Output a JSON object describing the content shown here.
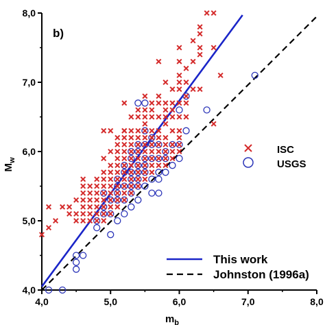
{
  "chart_data": {
    "type": "scatter",
    "panel_label": "b)",
    "xlabel_main": "m",
    "xlabel_sub": "b",
    "ylabel_main": "M",
    "ylabel_sub": "w",
    "xlim": [
      4.0,
      8.0
    ],
    "ylim": [
      4.0,
      8.0
    ],
    "x_ticks": [
      4.0,
      5.0,
      6.0,
      7.0,
      8.0
    ],
    "y_ticks": [
      4.0,
      5.0,
      6.0,
      7.0,
      8.0
    ],
    "x_tick_labels": [
      "4,0",
      "5,0",
      "6,0",
      "7,0",
      "8,0"
    ],
    "y_tick_labels": [
      "4,0",
      "5,0",
      "6,0",
      "7,0",
      "8,0"
    ],
    "grid": false,
    "legend_placement": "right",
    "colors": {
      "isc": "#d42a2a",
      "usgs": "#2a34b8",
      "this_work": "#1a25c8",
      "johnston": "#000000"
    },
    "series": [
      {
        "name": "ISC",
        "marker": "x",
        "points": [
          [
            4.0,
            4.8
          ],
          [
            4.1,
            4.9
          ],
          [
            4.1,
            5.2
          ],
          [
            4.2,
            5.0
          ],
          [
            4.3,
            5.2
          ],
          [
            4.4,
            5.2
          ],
          [
            4.4,
            5.1
          ],
          [
            4.5,
            5.0
          ],
          [
            4.5,
            5.1
          ],
          [
            4.5,
            5.3
          ],
          [
            4.6,
            5.0
          ],
          [
            4.6,
            5.1
          ],
          [
            4.6,
            5.2
          ],
          [
            4.6,
            5.3
          ],
          [
            4.6,
            5.4
          ],
          [
            4.6,
            5.5
          ],
          [
            4.6,
            5.6
          ],
          [
            4.7,
            5.0
          ],
          [
            4.7,
            5.1
          ],
          [
            4.7,
            5.2
          ],
          [
            4.7,
            5.3
          ],
          [
            4.7,
            5.4
          ],
          [
            4.7,
            5.5
          ],
          [
            4.8,
            5.0
          ],
          [
            4.8,
            5.1
          ],
          [
            4.8,
            5.2
          ],
          [
            4.8,
            5.3
          ],
          [
            4.8,
            5.4
          ],
          [
            4.8,
            5.5
          ],
          [
            4.8,
            5.6
          ],
          [
            4.9,
            5.0
          ],
          [
            4.9,
            5.1
          ],
          [
            4.9,
            5.2
          ],
          [
            4.9,
            5.3
          ],
          [
            4.9,
            5.4
          ],
          [
            4.9,
            5.5
          ],
          [
            4.9,
            5.6
          ],
          [
            4.9,
            5.7
          ],
          [
            4.9,
            5.9
          ],
          [
            5.0,
            5.1
          ],
          [
            5.0,
            5.2
          ],
          [
            5.0,
            5.3
          ],
          [
            5.0,
            5.4
          ],
          [
            5.0,
            5.5
          ],
          [
            5.0,
            5.6
          ],
          [
            5.0,
            5.7
          ],
          [
            5.0,
            5.8
          ],
          [
            5.0,
            6.0
          ],
          [
            5.0,
            6.3
          ],
          [
            5.1,
            5.2
          ],
          [
            5.1,
            5.3
          ],
          [
            5.1,
            5.4
          ],
          [
            5.1,
            5.5
          ],
          [
            5.1,
            5.6
          ],
          [
            5.1,
            5.7
          ],
          [
            5.1,
            5.8
          ],
          [
            5.1,
            5.9
          ],
          [
            5.1,
            6.0
          ],
          [
            5.1,
            6.1
          ],
          [
            5.1,
            6.2
          ],
          [
            5.2,
            5.3
          ],
          [
            5.2,
            5.4
          ],
          [
            5.2,
            5.5
          ],
          [
            5.2,
            5.6
          ],
          [
            5.2,
            5.7
          ],
          [
            5.2,
            5.8
          ],
          [
            5.2,
            5.9
          ],
          [
            5.2,
            6.0
          ],
          [
            5.2,
            6.1
          ],
          [
            5.2,
            6.2
          ],
          [
            5.2,
            6.3
          ],
          [
            5.2,
            6.7
          ],
          [
            5.3,
            5.4
          ],
          [
            5.3,
            5.5
          ],
          [
            5.3,
            5.6
          ],
          [
            5.3,
            5.7
          ],
          [
            5.3,
            5.8
          ],
          [
            5.3,
            5.9
          ],
          [
            5.3,
            6.0
          ],
          [
            5.3,
            6.1
          ],
          [
            5.3,
            6.2
          ],
          [
            5.3,
            6.3
          ],
          [
            5.3,
            6.5
          ],
          [
            5.4,
            5.5
          ],
          [
            5.4,
            5.6
          ],
          [
            5.4,
            5.7
          ],
          [
            5.4,
            5.8
          ],
          [
            5.4,
            5.9
          ],
          [
            5.4,
            6.0
          ],
          [
            5.4,
            6.1
          ],
          [
            5.4,
            6.2
          ],
          [
            5.4,
            6.3
          ],
          [
            5.4,
            6.5
          ],
          [
            5.4,
            6.6
          ],
          [
            5.5,
            5.6
          ],
          [
            5.5,
            5.7
          ],
          [
            5.5,
            5.8
          ],
          [
            5.5,
            5.9
          ],
          [
            5.5,
            6.0
          ],
          [
            5.5,
            6.1
          ],
          [
            5.5,
            6.2
          ],
          [
            5.5,
            6.3
          ],
          [
            5.5,
            6.4
          ],
          [
            5.5,
            6.5
          ],
          [
            5.5,
            6.6
          ],
          [
            5.5,
            6.8
          ],
          [
            5.6,
            5.7
          ],
          [
            5.6,
            5.8
          ],
          [
            5.6,
            5.9
          ],
          [
            5.6,
            6.0
          ],
          [
            5.6,
            6.1
          ],
          [
            5.6,
            6.2
          ],
          [
            5.6,
            6.3
          ],
          [
            5.6,
            6.5
          ],
          [
            5.6,
            6.6
          ],
          [
            5.6,
            6.7
          ],
          [
            5.7,
            5.8
          ],
          [
            5.7,
            5.9
          ],
          [
            5.7,
            6.0
          ],
          [
            5.7,
            6.1
          ],
          [
            5.7,
            6.2
          ],
          [
            5.7,
            6.3
          ],
          [
            5.7,
            6.5
          ],
          [
            5.7,
            6.7
          ],
          [
            5.7,
            6.8
          ],
          [
            5.8,
            5.8
          ],
          [
            5.8,
            5.9
          ],
          [
            5.8,
            6.0
          ],
          [
            5.8,
            6.1
          ],
          [
            5.8,
            6.2
          ],
          [
            5.8,
            6.4
          ],
          [
            5.8,
            6.5
          ],
          [
            5.8,
            6.6
          ],
          [
            5.8,
            6.7
          ],
          [
            5.8,
            7.0
          ],
          [
            5.9,
            5.9
          ],
          [
            5.9,
            6.0
          ],
          [
            5.9,
            6.1
          ],
          [
            5.9,
            6.3
          ],
          [
            5.9,
            6.5
          ],
          [
            5.9,
            6.6
          ],
          [
            5.9,
            6.7
          ],
          [
            5.9,
            6.9
          ],
          [
            6.0,
            6.0
          ],
          [
            6.0,
            6.1
          ],
          [
            6.0,
            6.2
          ],
          [
            6.0,
            6.3
          ],
          [
            6.0,
            6.5
          ],
          [
            6.0,
            6.7
          ],
          [
            6.0,
            6.9
          ],
          [
            6.0,
            7.0
          ],
          [
            6.0,
            7.1
          ],
          [
            6.0,
            7.3
          ],
          [
            6.0,
            7.5
          ],
          [
            6.1,
            6.5
          ],
          [
            6.1,
            6.7
          ],
          [
            6.1,
            6.8
          ],
          [
            6.1,
            7.0
          ],
          [
            6.1,
            7.2
          ],
          [
            6.2,
            6.9
          ],
          [
            6.2,
            7.3
          ],
          [
            6.2,
            7.6
          ],
          [
            6.3,
            6.9
          ],
          [
            6.3,
            7.7
          ],
          [
            6.3,
            7.8
          ],
          [
            6.3,
            7.5
          ],
          [
            6.3,
            7.4
          ],
          [
            6.4,
            8.0
          ],
          [
            6.5,
            8.0
          ],
          [
            6.5,
            7.5
          ],
          [
            6.5,
            6.4
          ],
          [
            5.7,
            7.3
          ],
          [
            6.6,
            7.1
          ],
          [
            5.2,
            6.3
          ],
          [
            4.9,
            6.3
          ]
        ]
      },
      {
        "name": "USGS",
        "marker": "o",
        "points": [
          [
            4.1,
            4.0
          ],
          [
            4.3,
            4.0
          ],
          [
            4.5,
            4.3
          ],
          [
            4.5,
            4.4
          ],
          [
            4.5,
            4.5
          ],
          [
            4.6,
            4.5
          ],
          [
            4.8,
            4.9
          ],
          [
            4.8,
            5.0
          ],
          [
            4.9,
            5.1
          ],
          [
            4.9,
            5.2
          ],
          [
            4.9,
            5.4
          ],
          [
            5.0,
            4.8
          ],
          [
            5.0,
            5.1
          ],
          [
            5.0,
            5.3
          ],
          [
            5.1,
            5.0
          ],
          [
            5.1,
            5.3
          ],
          [
            5.1,
            5.4
          ],
          [
            5.1,
            5.5
          ],
          [
            5.1,
            5.6
          ],
          [
            5.2,
            5.1
          ],
          [
            5.2,
            5.3
          ],
          [
            5.2,
            5.5
          ],
          [
            5.2,
            5.7
          ],
          [
            5.2,
            5.8
          ],
          [
            5.3,
            5.2
          ],
          [
            5.3,
            5.4
          ],
          [
            5.3,
            5.5
          ],
          [
            5.3,
            5.6
          ],
          [
            5.3,
            5.7
          ],
          [
            5.3,
            5.9
          ],
          [
            5.3,
            6.0
          ],
          [
            5.4,
            5.3
          ],
          [
            5.4,
            5.5
          ],
          [
            5.4,
            5.6
          ],
          [
            5.4,
            5.7
          ],
          [
            5.4,
            5.8
          ],
          [
            5.4,
            6.0
          ],
          [
            5.4,
            6.1
          ],
          [
            5.5,
            5.5
          ],
          [
            5.5,
            5.7
          ],
          [
            5.5,
            5.8
          ],
          [
            5.5,
            5.9
          ],
          [
            5.5,
            6.1
          ],
          [
            5.5,
            6.3
          ],
          [
            5.5,
            6.7
          ],
          [
            5.6,
            5.4
          ],
          [
            5.6,
            5.6
          ],
          [
            5.6,
            5.9
          ],
          [
            5.6,
            6.1
          ],
          [
            5.6,
            6.2
          ],
          [
            5.7,
            5.4
          ],
          [
            5.7,
            5.6
          ],
          [
            5.7,
            5.7
          ],
          [
            5.7,
            5.9
          ],
          [
            5.7,
            6.1
          ],
          [
            5.8,
            6.0
          ],
          [
            5.8,
            5.7
          ],
          [
            5.8,
            5.9
          ],
          [
            5.9,
            6.1
          ],
          [
            5.9,
            5.8
          ],
          [
            6.0,
            5.9
          ],
          [
            6.0,
            6.1
          ],
          [
            6.0,
            6.6
          ],
          [
            6.1,
            6.3
          ],
          [
            6.1,
            6.8
          ],
          [
            6.4,
            6.6
          ],
          [
            7.1,
            7.1
          ],
          [
            5.4,
            6.7
          ]
        ]
      }
    ],
    "lines": [
      {
        "name": "This work",
        "style": "solid",
        "x": [
          4.0,
          6.92
        ],
        "y": [
          4.05,
          7.97
        ]
      },
      {
        "name": "Johnston (1996a)",
        "style": "dashed",
        "x": [
          4.0,
          8.0
        ],
        "y": [
          4.0,
          7.95
        ]
      }
    ]
  }
}
